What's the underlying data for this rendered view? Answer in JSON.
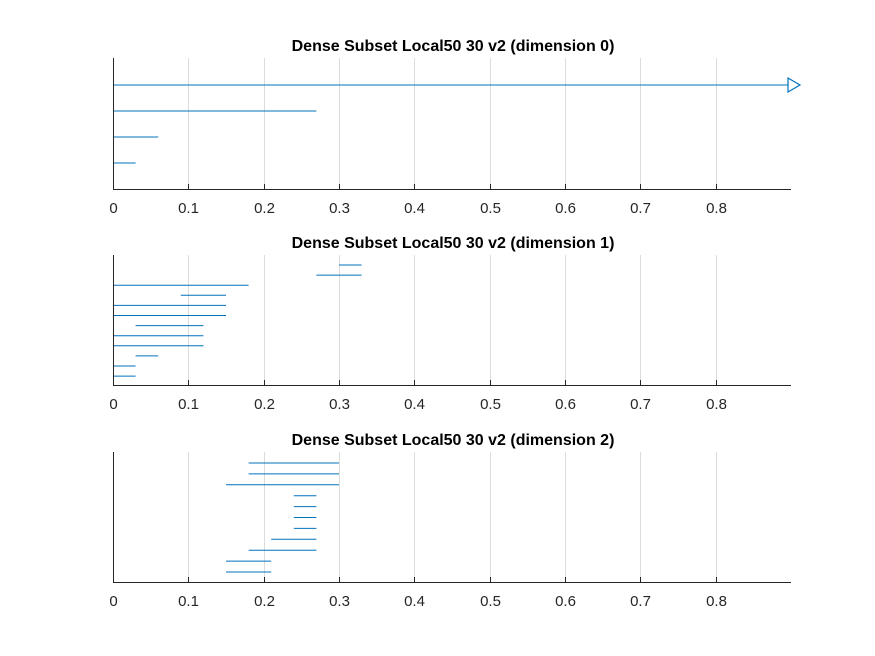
{
  "chart_data": [
    {
      "type": "barcode",
      "title": "Dense Subset Local50 30 v2 (dimension 0)",
      "xlabel": "",
      "ylabel": "",
      "xlim": [
        0,
        0.9
      ],
      "xticks": [
        0,
        0.1,
        0.2,
        0.3,
        0.4,
        0.5,
        0.6,
        0.7,
        0.8
      ],
      "xtick_labels": [
        "0",
        "0.1",
        "0.2",
        "0.3",
        "0.4",
        "0.5",
        "0.6",
        "0.7",
        "0.8"
      ],
      "grid": true,
      "color": "#0072bd",
      "bars": [
        {
          "birth": 0,
          "death": null
        },
        {
          "birth": 0,
          "death": 0.27
        },
        {
          "birth": 0,
          "death": 0.06
        },
        {
          "birth": 0,
          "death": 0.03
        }
      ]
    },
    {
      "type": "barcode",
      "title": "Dense Subset Local50 30 v2 (dimension 1)",
      "xlabel": "",
      "ylabel": "",
      "xlim": [
        0,
        0.9
      ],
      "xticks": [
        0,
        0.1,
        0.2,
        0.3,
        0.4,
        0.5,
        0.6,
        0.7,
        0.8
      ],
      "xtick_labels": [
        "0",
        "0.1",
        "0.2",
        "0.3",
        "0.4",
        "0.5",
        "0.6",
        "0.7",
        "0.8"
      ],
      "grid": true,
      "color": "#0072bd",
      "bars": [
        {
          "birth": 0.3,
          "death": 0.33
        },
        {
          "birth": 0.27,
          "death": 0.33
        },
        {
          "birth": 0,
          "death": 0.18
        },
        {
          "birth": 0.09,
          "death": 0.15
        },
        {
          "birth": 0,
          "death": 0.15
        },
        {
          "birth": 0,
          "death": 0.15
        },
        {
          "birth": 0.03,
          "death": 0.12
        },
        {
          "birth": 0,
          "death": 0.12
        },
        {
          "birth": 0,
          "death": 0.12
        },
        {
          "birth": 0.03,
          "death": 0.06
        },
        {
          "birth": 0,
          "death": 0.03
        },
        {
          "birth": 0,
          "death": 0.03
        }
      ]
    },
    {
      "type": "barcode",
      "title": "Dense Subset Local50 30 v2 (dimension 2)",
      "xlabel": "",
      "ylabel": "",
      "xlim": [
        0,
        0.9
      ],
      "xticks": [
        0,
        0.1,
        0.2,
        0.3,
        0.4,
        0.5,
        0.6,
        0.7,
        0.8
      ],
      "xtick_labels": [
        "0",
        "0.1",
        "0.2",
        "0.3",
        "0.4",
        "0.5",
        "0.6",
        "0.7",
        "0.8"
      ],
      "grid": true,
      "color": "#0072bd",
      "bars": [
        {
          "birth": 0.18,
          "death": 0.3
        },
        {
          "birth": 0.18,
          "death": 0.3
        },
        {
          "birth": 0.15,
          "death": 0.3
        },
        {
          "birth": 0.24,
          "death": 0.27
        },
        {
          "birth": 0.24,
          "death": 0.27
        },
        {
          "birth": 0.24,
          "death": 0.27
        },
        {
          "birth": 0.24,
          "death": 0.27
        },
        {
          "birth": 0.21,
          "death": 0.27
        },
        {
          "birth": 0.18,
          "death": 0.27
        },
        {
          "birth": 0.15,
          "death": 0.21
        },
        {
          "birth": 0.15,
          "death": 0.21
        }
      ]
    }
  ]
}
